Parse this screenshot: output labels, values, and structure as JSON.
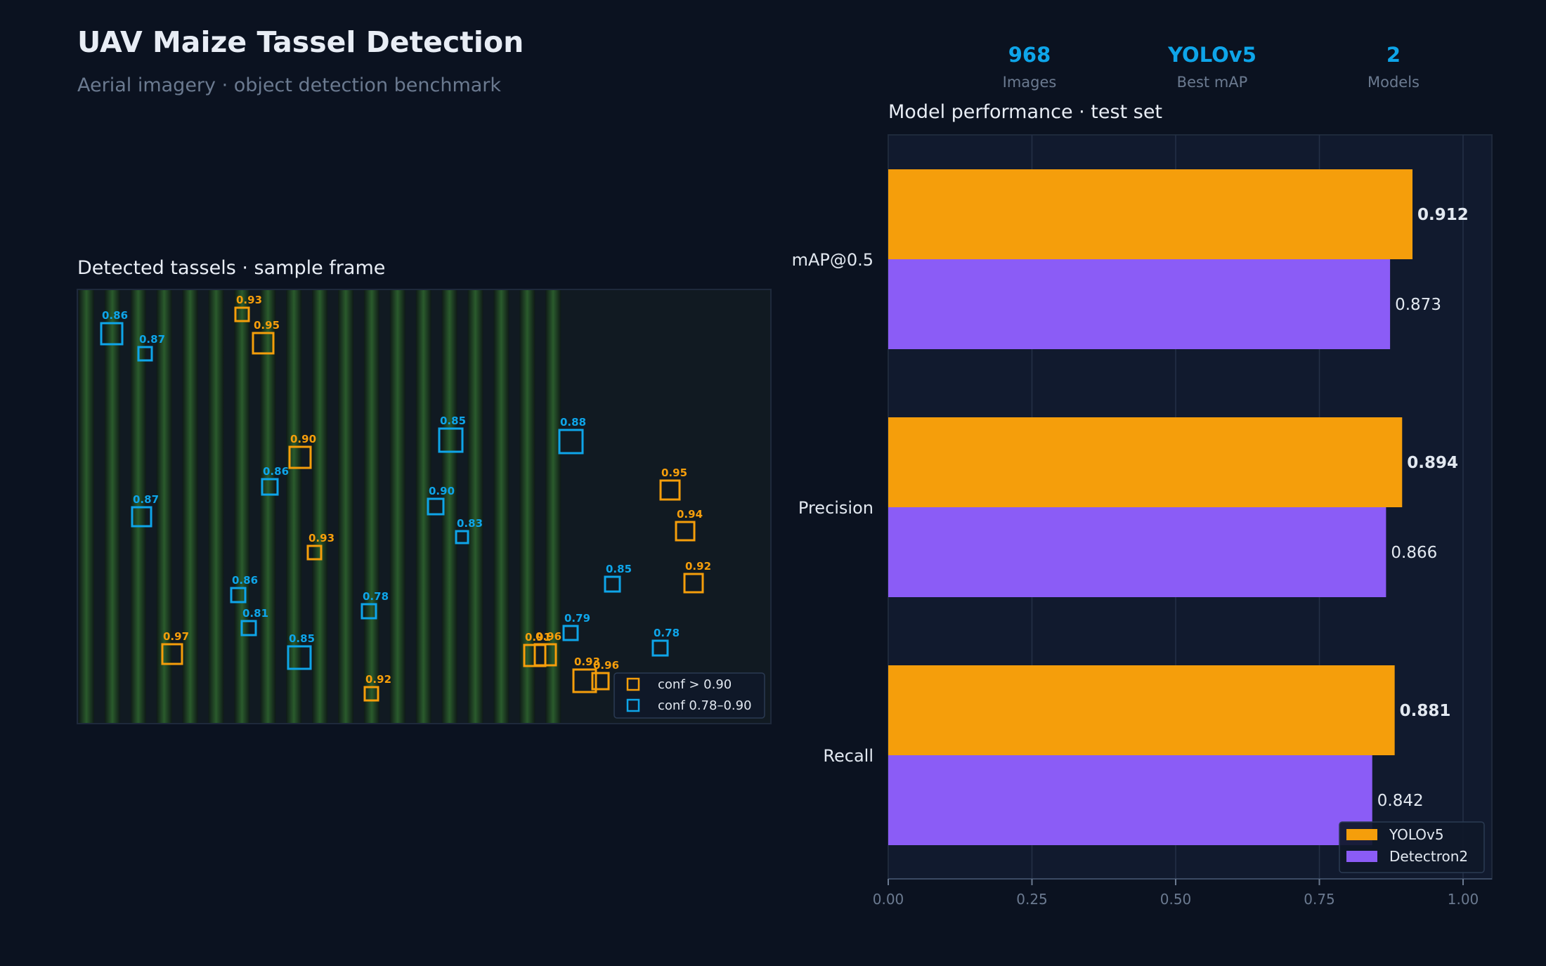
{
  "header": {
    "title": "UAV Maize Tassel Detection",
    "subtitle": "Aerial imagery · object detection benchmark"
  },
  "stats": [
    {
      "value": "968",
      "label": "Images"
    },
    {
      "value": "YOLOv5",
      "label": "Best mAP"
    },
    {
      "value": "2",
      "label": "Models"
    }
  ],
  "colors": {
    "background": "#0b1220",
    "panel": "#111a2e",
    "accent": "#0ea5e9",
    "yolo": "#f59e0b",
    "detectron": "#8b5cf6",
    "high_conf": "#f59e0b",
    "mid_conf": "#0ea5e9"
  },
  "detection": {
    "title": "Detected tassels · sample frame",
    "legend": [
      "conf > 0.90",
      "conf 0.78–0.90"
    ],
    "boxes": [
      {
        "conf": "0.86",
        "level": "mid"
      },
      {
        "conf": "0.87",
        "level": "mid"
      },
      {
        "conf": "0.93",
        "level": "high"
      },
      {
        "conf": "0.95",
        "level": "high"
      },
      {
        "conf": "0.85",
        "level": "mid"
      },
      {
        "conf": "0.88",
        "level": "mid"
      },
      {
        "conf": "0.90",
        "level": "high"
      },
      {
        "conf": "0.86",
        "level": "mid"
      },
      {
        "conf": "0.95",
        "level": "high"
      },
      {
        "conf": "0.87",
        "level": "mid"
      },
      {
        "conf": "0.90",
        "level": "mid"
      },
      {
        "conf": "0.94",
        "level": "high"
      },
      {
        "conf": "0.83",
        "level": "mid"
      },
      {
        "conf": "0.93",
        "level": "high"
      },
      {
        "conf": "0.85",
        "level": "mid"
      },
      {
        "conf": "0.92",
        "level": "high"
      },
      {
        "conf": "0.86",
        "level": "mid"
      },
      {
        "conf": "0.78",
        "level": "mid"
      },
      {
        "conf": "0.81",
        "level": "mid"
      },
      {
        "conf": "0.79",
        "level": "mid"
      },
      {
        "conf": "0.97",
        "level": "high"
      },
      {
        "conf": "0.85",
        "level": "mid"
      },
      {
        "conf": "0.91",
        "level": "high"
      },
      {
        "conf": "0.96",
        "level": "high"
      },
      {
        "conf": "0.78",
        "level": "mid"
      },
      {
        "conf": "0.92",
        "level": "high"
      },
      {
        "conf": "0.93",
        "level": "high"
      },
      {
        "conf": "0.96",
        "level": "high"
      }
    ]
  },
  "chart_data": {
    "type": "bar",
    "orientation": "horizontal",
    "title": "Model performance · test set",
    "categories": [
      "mAP@0.5",
      "Precision",
      "Recall"
    ],
    "series": [
      {
        "name": "YOLOv5",
        "values": [
          0.912,
          0.894,
          0.881
        ],
        "labels": [
          "0.912",
          "0.894",
          "0.881"
        ],
        "color": "#f59e0b"
      },
      {
        "name": "Detectron2",
        "values": [
          0.873,
          0.866,
          0.842
        ],
        "labels": [
          "0.873",
          "0.866",
          "0.842"
        ],
        "color": "#8b5cf6"
      }
    ],
    "xlim": [
      0,
      1.05
    ],
    "xticks": [
      "0.00",
      "0.25",
      "0.50",
      "0.75",
      "1.00"
    ],
    "xtick_values": [
      0,
      0.25,
      0.5,
      0.75,
      1.0
    ],
    "grid": true,
    "legend_position": "bottom-right"
  }
}
